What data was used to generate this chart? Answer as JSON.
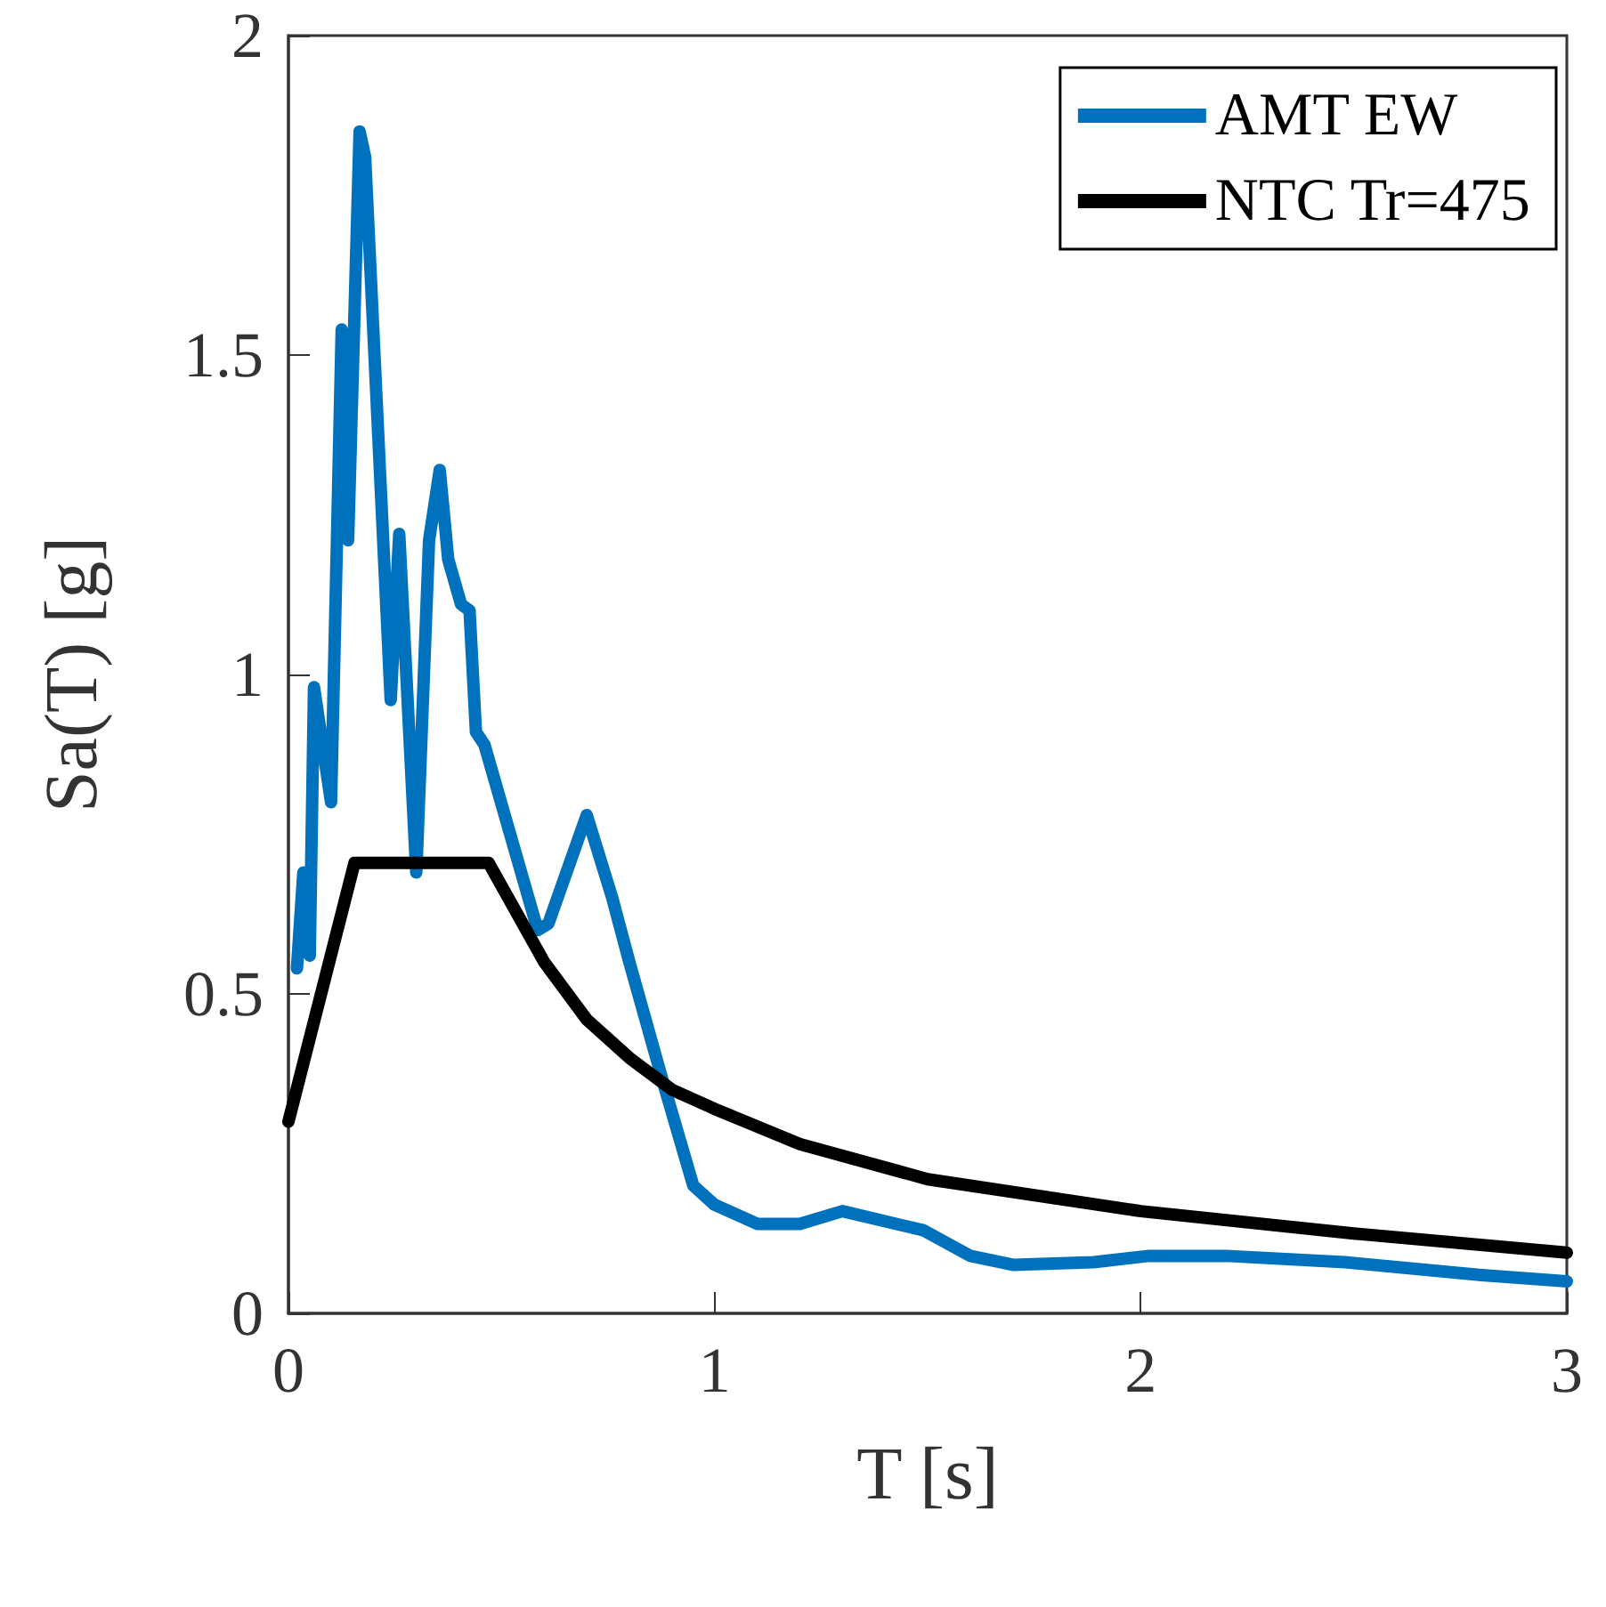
{
  "chart_data": {
    "type": "line",
    "xlabel": "T [s]",
    "ylabel": "Sa(T) [g]",
    "xlim": [
      0,
      3
    ],
    "ylim": [
      0,
      2
    ],
    "xticks": [
      0,
      1,
      2,
      3
    ],
    "yticks": [
      0,
      0.5,
      1,
      1.5,
      2
    ],
    "grid": false,
    "legend": "top right",
    "marker": "none",
    "line_style": "solid",
    "series": [
      {
        "name": "AMT EW",
        "color": "#0072bd",
        "x": [
          0.02,
          0.035,
          0.05,
          0.06,
          0.1,
          0.125,
          0.14,
          0.167,
          0.18,
          0.24,
          0.26,
          0.3,
          0.33,
          0.355,
          0.375,
          0.405,
          0.425,
          0.44,
          0.46,
          0.585,
          0.61,
          0.7,
          0.76,
          0.8,
          0.88,
          0.95,
          1.0,
          1.1,
          1.2,
          1.3,
          1.49,
          1.6,
          1.7,
          1.89,
          2.02,
          2.2,
          2.48,
          2.8,
          3.0
        ],
        "values": [
          0.54,
          0.69,
          0.56,
          0.98,
          0.8,
          1.54,
          1.21,
          1.85,
          1.81,
          0.96,
          1.22,
          0.69,
          1.21,
          1.32,
          1.18,
          1.11,
          1.1,
          0.91,
          0.89,
          0.6,
          0.61,
          0.78,
          0.65,
          0.55,
          0.36,
          0.2,
          0.17,
          0.14,
          0.14,
          0.16,
          0.13,
          0.09,
          0.076,
          0.08,
          0.09,
          0.09,
          0.08,
          0.06,
          0.05
        ]
      },
      {
        "name": "NTC Tr=475",
        "color": "#000000",
        "x": [
          0,
          0.155,
          0.47,
          0.6,
          0.7,
          0.8,
          0.9,
          1.0,
          1.2,
          1.5,
          2.0,
          2.5,
          3.0
        ],
        "values": [
          0.3,
          0.705,
          0.705,
          0.55,
          0.46,
          0.4,
          0.35,
          0.32,
          0.265,
          0.21,
          0.16,
          0.125,
          0.095
        ]
      }
    ]
  }
}
